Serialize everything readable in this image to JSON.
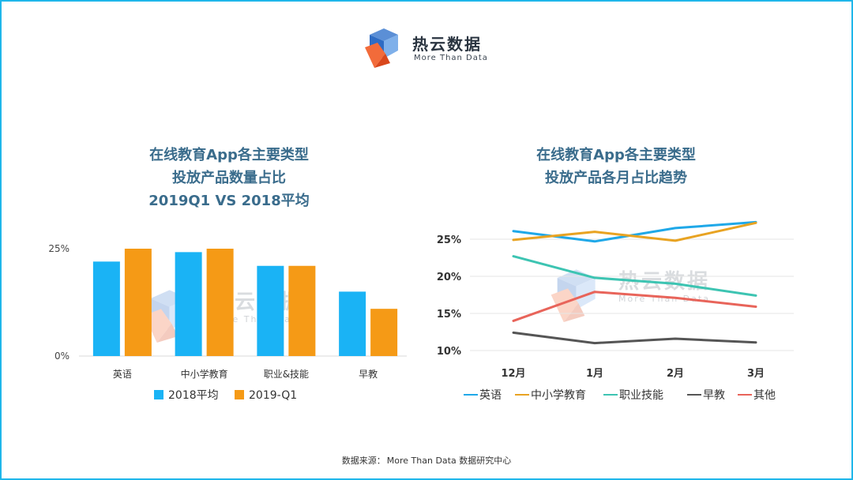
{
  "brand": {
    "name": "热云数据",
    "tagline": "More Than Data"
  },
  "colors": {
    "frame": "#1fb6ea",
    "blue": "#1ab3f5",
    "orange": "#f59a16",
    "title": "#3a6c8c"
  },
  "footer": {
    "source_label": "数据来源：",
    "source_text": "More Than Data 数据研究中心"
  },
  "chart_data": [
    {
      "type": "bar",
      "title_lines": [
        "在线教育App各主要类型",
        "投放产品数量占比",
        "2019Q1 VS 2018平均"
      ],
      "categories": [
        "英语",
        "中小学教育",
        "职业&技能",
        "早教"
      ],
      "series": [
        {
          "name": "2018平均",
          "color": "#1ab3f5",
          "values": [
            22,
            24.2,
            21,
            15
          ]
        },
        {
          "name": "2019-Q1",
          "color": "#f59a16",
          "values": [
            25,
            25,
            21,
            11
          ]
        }
      ],
      "ylim": [
        0,
        25
      ],
      "y_ticks": [
        {
          "value": 0,
          "label": "0%"
        },
        {
          "value": 25,
          "label": "25%"
        }
      ],
      "legend_position": "bottom"
    },
    {
      "type": "line",
      "title_lines": [
        "在线教育App各主要类型",
        "投放产品各月占比趋势"
      ],
      "x": [
        "12月",
        "1月",
        "2月",
        "3月"
      ],
      "series": [
        {
          "name": "英语",
          "color": "#1fa8e8",
          "values": [
            26.1,
            24.7,
            26.5,
            27.3
          ]
        },
        {
          "name": "中小学教育",
          "color": "#e8a322",
          "values": [
            24.9,
            26.0,
            24.8,
            27.2
          ]
        },
        {
          "name": "职业技能",
          "color": "#3dc4b2",
          "values": [
            22.7,
            19.8,
            19.0,
            17.4
          ]
        },
        {
          "name": "早教",
          "color": "#555555",
          "values": [
            12.4,
            11.0,
            11.6,
            11.1
          ]
        },
        {
          "name": "其他",
          "color": "#e8645a",
          "values": [
            14.0,
            17.9,
            17.1,
            15.9
          ]
        }
      ],
      "ylim": [
        10,
        27.5
      ],
      "y_ticks": [
        {
          "value": 10,
          "label": "10%"
        },
        {
          "value": 15,
          "label": "15%"
        },
        {
          "value": 20,
          "label": "20%"
        },
        {
          "value": 25,
          "label": "25%"
        }
      ],
      "grid": true,
      "legend_position": "bottom"
    }
  ]
}
